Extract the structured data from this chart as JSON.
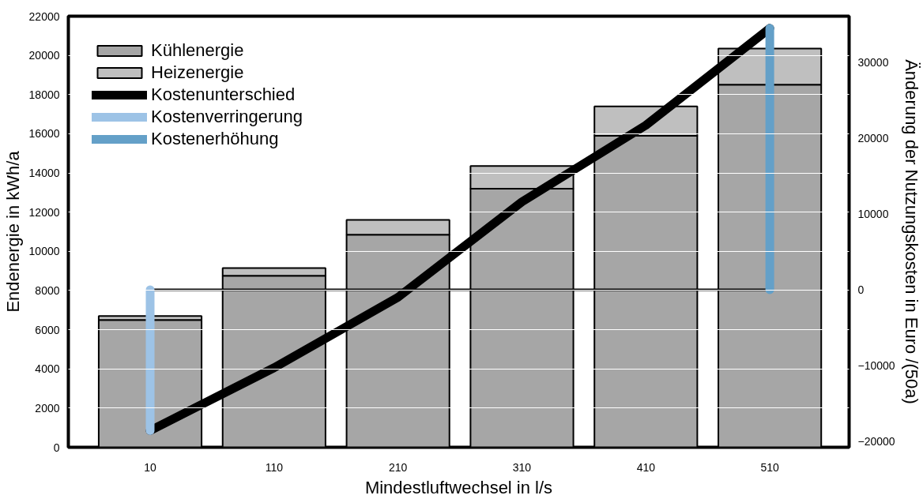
{
  "chart_data": {
    "type": "bar",
    "stacked": true,
    "xlabel": "Mindestluftwechsel in l/s",
    "ylabel": "Endenergie in kWh/a",
    "y2label": "Änderung der Nutzungskosten in Euro /(50a)",
    "categories": [
      "10",
      "110",
      "210",
      "310",
      "410",
      "510"
    ],
    "series": [
      {
        "name": "Kühlenergie",
        "color": "#a6a6a6",
        "values": [
          6500,
          8750,
          10850,
          13200,
          15900,
          18500
        ]
      },
      {
        "name": "Heizenergie",
        "color": "#bfbfbf",
        "values": [
          200,
          400,
          750,
          1150,
          1500,
          1850
        ]
      },
      {
        "name": "Kostenunterschied",
        "type": "line",
        "axis": "y2",
        "color": "#000000",
        "values": [
          -18600,
          -10300,
          -1000,
          11600,
          21700,
          34500
        ]
      },
      {
        "name": "Kostenverringerung",
        "type": "line",
        "axis": "y2",
        "color": "#9dc3e6",
        "x": [
          "10",
          "10"
        ],
        "values": [
          -18600,
          0
        ]
      },
      {
        "name": "Kostenerhöhung",
        "type": "line",
        "axis": "y2",
        "color": "#64a0c8",
        "x": [
          "510",
          "510"
        ],
        "values": [
          0,
          34500
        ]
      }
    ],
    "ref_lines": [
      {
        "axis": "y2",
        "value": 0,
        "color": "#000000"
      }
    ],
    "ylim": [
      0,
      22000
    ],
    "yticks": [
      0,
      2000,
      4000,
      6000,
      8000,
      10000,
      12000,
      14000,
      16000,
      18000,
      20000,
      22000
    ],
    "y2lim": [
      -20800,
      36100
    ],
    "y2ticks": [
      -20000,
      -10000,
      0,
      10000,
      20000,
      30000
    ],
    "grid": "y",
    "legend": "top left"
  }
}
